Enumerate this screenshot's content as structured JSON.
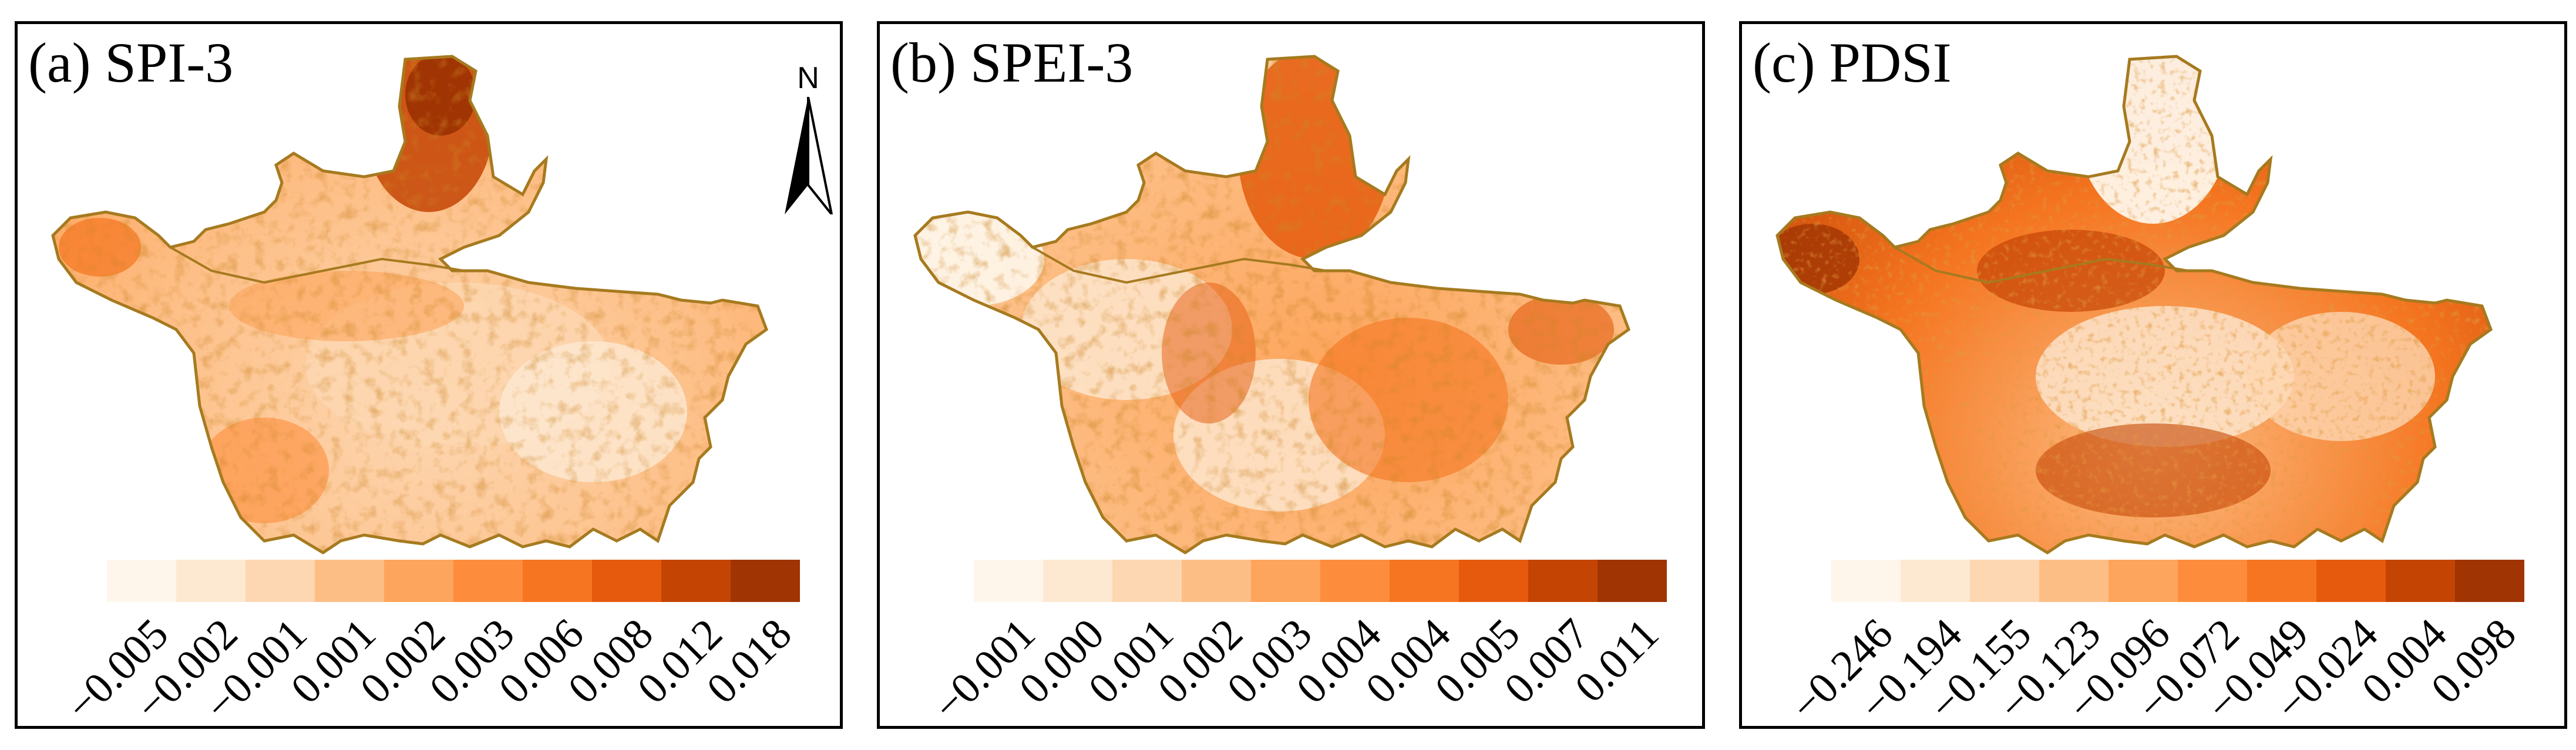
{
  "panels": [
    {
      "title": "(a) SPI-3",
      "legend_ticks": [
        "−0.005",
        "−0.002",
        "−0.001",
        "0.001",
        "0.002",
        "0.003",
        "0.006",
        "0.008",
        "0.012",
        "0.018"
      ],
      "legend_colors": [
        "#fef6ea",
        "#fde9d2",
        "#fdd7b2",
        "#fdbe85",
        "#fda55c",
        "#fd8d3c",
        "#f57520",
        "#e55a0d",
        "#c44404",
        "#a03403"
      ]
    },
    {
      "title": "(b) SPEI-3",
      "legend_ticks": [
        "−0.001",
        "0.000",
        "0.001",
        "0.002",
        "0.003",
        "0.004",
        "0.004",
        "0.005",
        "0.007",
        "0.011"
      ],
      "legend_colors": [
        "#fef6ea",
        "#fde9d2",
        "#fdd7b2",
        "#fdbe85",
        "#fda55c",
        "#fd8d3c",
        "#f57520",
        "#e55a0d",
        "#c44404",
        "#a03403"
      ]
    },
    {
      "title": "(c) PDSI",
      "legend_ticks": [
        "−0.246",
        "−0.194",
        "−0.155",
        "−0.123",
        "−0.096",
        "−0.072",
        "−0.049",
        "−0.024",
        "0.004",
        "0.098"
      ],
      "legend_colors": [
        "#fef6ea",
        "#fde9d2",
        "#fdd7b2",
        "#fdbe85",
        "#fda55c",
        "#fd8d3c",
        "#f57520",
        "#e55a0d",
        "#c44404",
        "#a03403"
      ]
    }
  ],
  "north_arrow": {
    "label": "N"
  },
  "colors": {
    "boundary": "#a67a1f",
    "frame": "#000000"
  }
}
